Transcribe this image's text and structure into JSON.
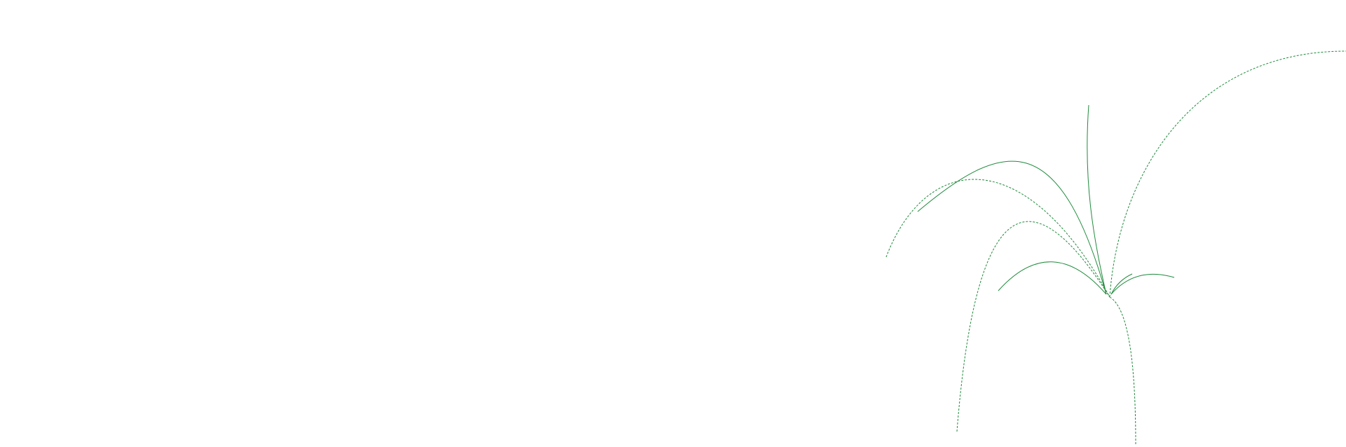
{
  "colors": {
    "stroke": "#1f8a3c",
    "background": "#ffffff"
  }
}
